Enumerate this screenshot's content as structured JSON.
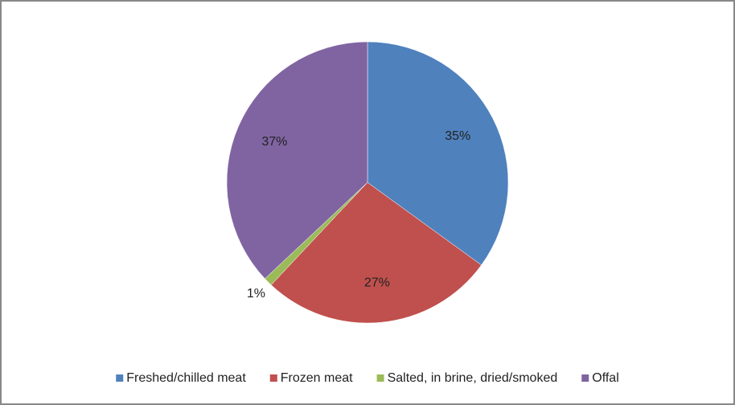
{
  "chart_data": {
    "type": "pie",
    "categories": [
      "Freshed/chilled meat",
      "Frozen meat",
      "Salted, in brine, dried/smoked",
      "Offal"
    ],
    "values": [
      35,
      27,
      1,
      37
    ],
    "value_labels": [
      "35%",
      "27%",
      "1%",
      "37%"
    ],
    "colors": [
      "#4f81bd",
      "#c0504d",
      "#9bbb59",
      "#8064a2"
    ],
    "legend": "bottom"
  }
}
